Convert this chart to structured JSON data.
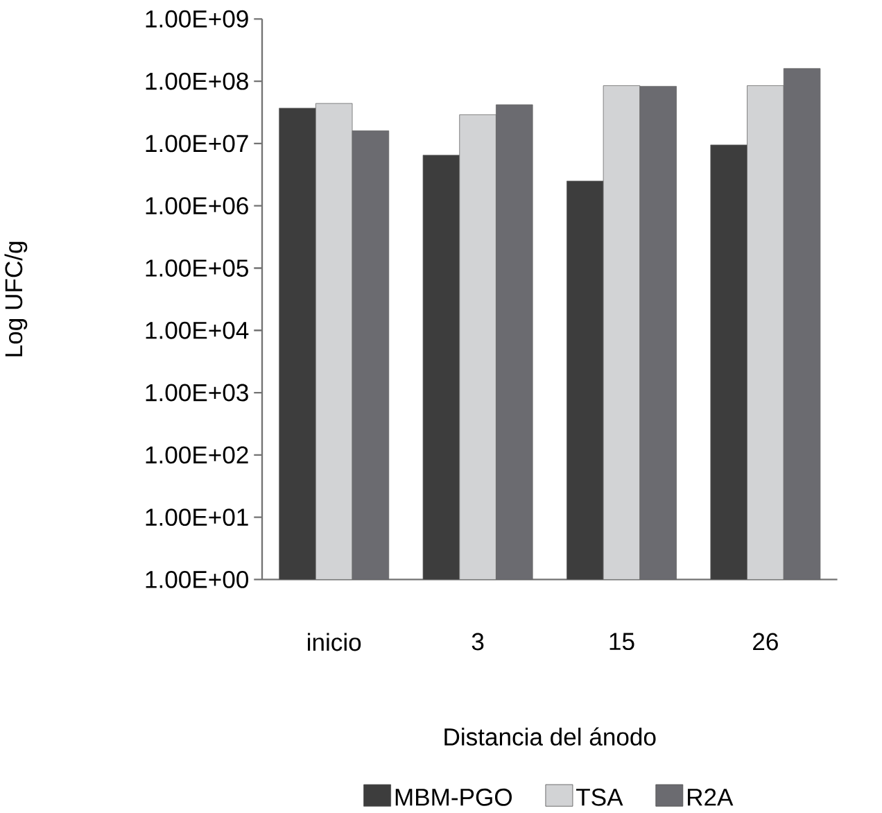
{
  "chart_data": {
    "type": "bar",
    "xlabel": "Distancia del ánodo",
    "ylabel": "Log UFC/g",
    "categories": [
      "inicio",
      "3",
      "15",
      "26"
    ],
    "series": [
      {
        "name": "MBM-PGO",
        "color": "#3d3d3d",
        "values": [
          37000000,
          6500000,
          2500000,
          9500000
        ]
      },
      {
        "name": "TSA",
        "color": "#d2d3d5",
        "values": [
          44000000,
          29000000,
          85000000,
          85000000
        ]
      },
      {
        "name": "R2A",
        "color": "#6b6b70",
        "values": [
          16000000,
          42000000,
          83000000,
          160000000
        ]
      }
    ],
    "log": "y",
    "ylim": [
      1,
      1000000000
    ],
    "yticks": [
      {
        "value": 1,
        "label": "1.00E+00"
      },
      {
        "value": 10,
        "label": "1.00E+01"
      },
      {
        "value": 100,
        "label": "1.00E+02"
      },
      {
        "value": 1000,
        "label": "1.00E+03"
      },
      {
        "value": 10000,
        "label": "1.00E+04"
      },
      {
        "value": 100000,
        "label": "1.00E+05"
      },
      {
        "value": 1000000,
        "label": "1.00E+06"
      },
      {
        "value": 10000000,
        "label": "1.00E+07"
      },
      {
        "value": 100000000,
        "label": "1.00E+08"
      },
      {
        "value": 1000000000,
        "label": "1.00E+09"
      }
    ],
    "grid": false,
    "legend": "bottom"
  }
}
